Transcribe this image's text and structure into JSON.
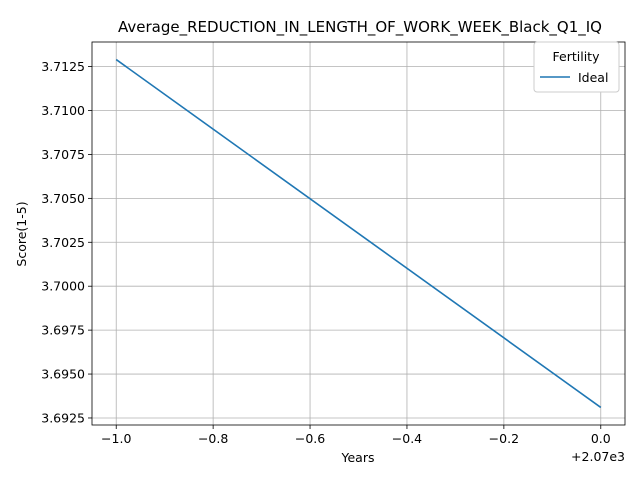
{
  "chart_data": {
    "type": "line",
    "title": "Average_REDUCTION_IN_LENGTH_OF_WORK_WEEK_Black_Q1_IQ",
    "xlabel": "Years",
    "ylabel": "Score(1-5)",
    "x_offset_label": "+2.07e3",
    "x_tick_labels": [
      "−1.0",
      "−0.8",
      "−0.6",
      "−0.4",
      "−0.2",
      "0.0"
    ],
    "x_ticks": [
      -1.0,
      -0.8,
      -0.6,
      -0.4,
      -0.2,
      0.0
    ],
    "y_tick_labels": [
      "3.6925",
      "3.6950",
      "3.6975",
      "3.7000",
      "3.7025",
      "3.7050",
      "3.7075",
      "3.7100",
      "3.7125"
    ],
    "y_ticks": [
      3.6925,
      3.695,
      3.6975,
      3.7,
      3.7025,
      3.705,
      3.7075,
      3.71,
      3.7125
    ],
    "xlim": [
      -1.05,
      0.05
    ],
    "ylim": [
      3.6921,
      3.7139
    ],
    "grid": true,
    "legend": {
      "title": "Fertility",
      "placement": "upper right"
    },
    "series": [
      {
        "name": "Ideal",
        "color": "#1f77b4",
        "x": [
          -1.0,
          0.0
        ],
        "y": [
          3.7129,
          3.6931
        ]
      }
    ]
  }
}
